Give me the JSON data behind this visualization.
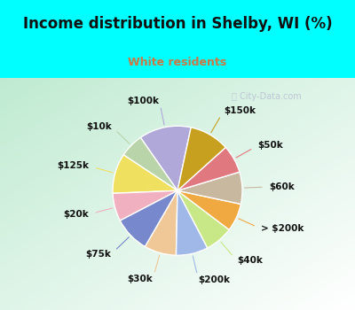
{
  "title": "Income distribution in Shelby, WI (%)",
  "subtitle": "White residents",
  "title_color": "#111111",
  "subtitle_color": "#cc7744",
  "bg_cyan": "#00ffff",
  "bg_chart_top": "#e8f5f0",
  "bg_chart_bottom": "#c0e8d0",
  "labels": [
    "$100k",
    "$10k",
    "$125k",
    "$20k",
    "$75k",
    "$30k",
    "$200k",
    "$40k",
    "> $200k",
    "$60k",
    "$50k",
    "$150k"
  ],
  "sizes": [
    13,
    6,
    10,
    7,
    9,
    8,
    8,
    7,
    7,
    8,
    7,
    10
  ],
  "colors": [
    "#b0a8d8",
    "#b8d4a8",
    "#f0e060",
    "#f0b0c0",
    "#7888cc",
    "#f0c898",
    "#a0b8e8",
    "#c8e888",
    "#f0a840",
    "#c8b8a0",
    "#e07880",
    "#c8a020"
  ],
  "wedge_linewidth": 1.0,
  "wedge_linecolor": "#ffffff",
  "label_fontsize": 7.5,
  "startangle": 78,
  "title_fontsize": 12,
  "subtitle_fontsize": 9
}
